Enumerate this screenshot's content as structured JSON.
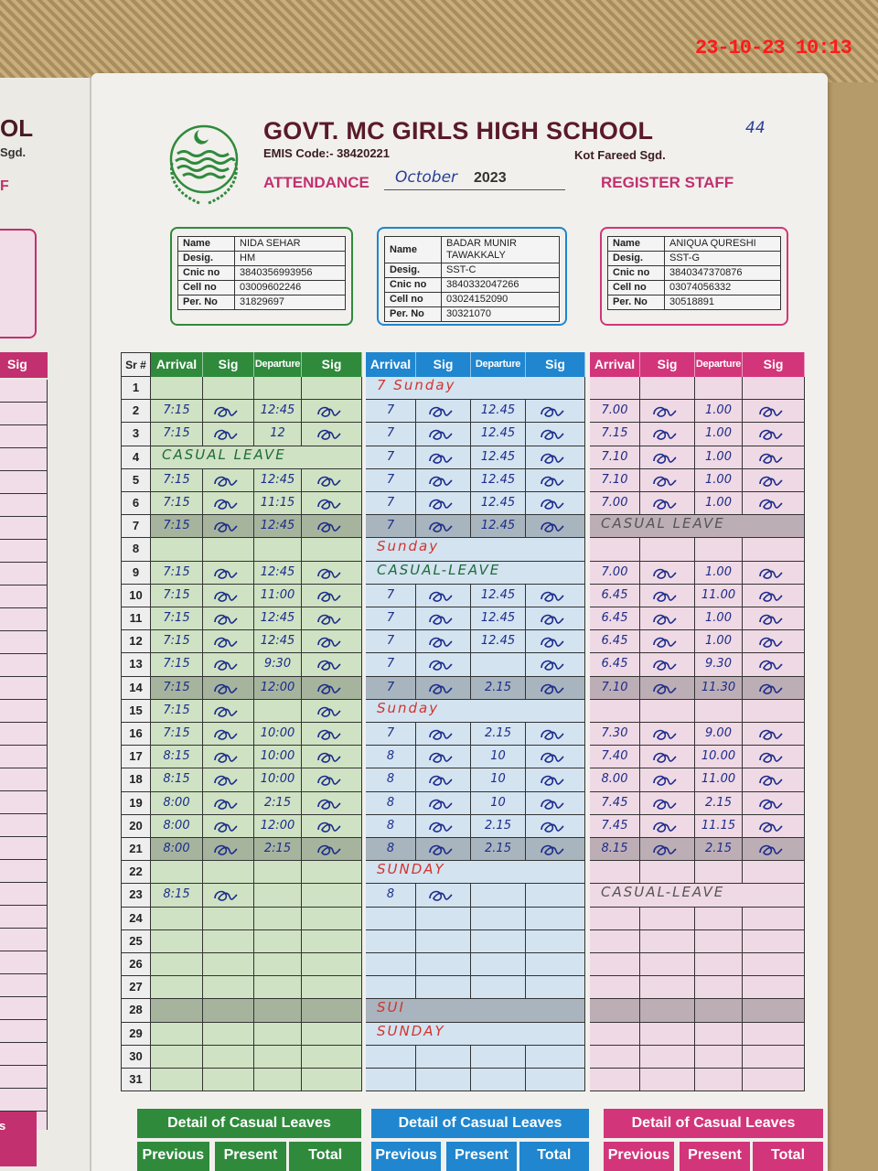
{
  "left_page": {
    "title_fragment": "OL",
    "city_fragment": "Sgd.",
    "letter_fragment": "F",
    "sig_header": "Sig",
    "footer_fragment": "s"
  },
  "header": {
    "school": "GOVT. MC GIRLS HIGH SCHOOL",
    "emis": "EMIS Code:- 38420221",
    "city": "Kot Fareed Sgd.",
    "page_number": "44",
    "attendance_label": "ATTENDANCE",
    "month": "October",
    "year": "2023",
    "register_label": "REGISTER STAFF"
  },
  "colors": {
    "green": "#2f8a3c",
    "green_bg": "#cfe2c3",
    "blue": "#1f86cf",
    "blue_bg": "#d3e3f0",
    "pink": "#d2357a",
    "pink_bg": "#efd9e4",
    "ink": "#1c2c8a",
    "title": "#5a1a28"
  },
  "field_labels": {
    "name": "Name",
    "desig": "Desig.",
    "cnic": "Cnic no",
    "cell": "Cell no",
    "per": "Per. No"
  },
  "columns": {
    "sr": "Sr #",
    "arrival": "Arrival",
    "sig": "Sig",
    "departure": "Departure"
  },
  "shaded_rows": [
    7,
    14,
    21,
    28
  ],
  "staff": [
    {
      "theme": "green",
      "name": "NIDA SEHAR",
      "desig": "HM",
      "cnic": "3840356993956",
      "cell": "03009602246",
      "per": "31829697",
      "rows": {
        "2": {
          "a": "7:15",
          "as": true,
          "d": "12:45",
          "ds": true
        },
        "3": {
          "a": "7:15",
          "as": true,
          "d": "12",
          "ds": true
        },
        "4": {
          "note": "CASUAL LEAVE"
        },
        "5": {
          "a": "7:15",
          "as": true,
          "d": "12:45",
          "ds": true
        },
        "6": {
          "a": "7:15",
          "as": true,
          "d": "11:15",
          "ds": true
        },
        "7": {
          "a": "7:15",
          "as": true,
          "d": "12:45",
          "ds": true
        },
        "9": {
          "a": "7:15",
          "as": true,
          "d": "12:45",
          "ds": true
        },
        "10": {
          "a": "7:15",
          "as": true,
          "d": "11:00",
          "ds": true
        },
        "11": {
          "a": "7:15",
          "as": true,
          "d": "12:45",
          "ds": true
        },
        "12": {
          "a": "7:15",
          "as": true,
          "d": "12:45",
          "ds": true
        },
        "13": {
          "a": "7:15",
          "as": true,
          "d": "9:30",
          "ds": true
        },
        "14": {
          "a": "7:15",
          "as": true,
          "d": "12:00",
          "ds": true
        },
        "15": {
          "a": "7:15",
          "as": true,
          "d": "",
          "ds": true
        },
        "16": {
          "a": "7:15",
          "as": true,
          "d": "10:00",
          "ds": true
        },
        "17": {
          "a": "8:15",
          "as": true,
          "d": "10:00",
          "ds": true
        },
        "18": {
          "a": "8:15",
          "as": true,
          "d": "10:00",
          "ds": true
        },
        "19": {
          "a": "8:00",
          "as": true,
          "d": "2:15",
          "ds": true
        },
        "20": {
          "a": "8:00",
          "as": true,
          "d": "12:00",
          "ds": true
        },
        "21": {
          "a": "8:00",
          "as": true,
          "d": "2:15",
          "ds": true
        },
        "23": {
          "a": "8:15",
          "as": true,
          "d": "",
          "ds": false
        }
      },
      "footer": {
        "title": "Detail of Casual Leaves",
        "previous": "Previous",
        "present": "Present",
        "total": "Total"
      }
    },
    {
      "theme": "blue",
      "name": "BADAR MUNIR TAWAKKALY",
      "desig": "SST-C",
      "cnic": "3840332047266",
      "cell": "03024152090",
      "per": "30321070",
      "rows": {
        "1": {
          "note": "7 Sunday"
        },
        "2": {
          "a": "7",
          "as": true,
          "d": "12.45",
          "ds": true
        },
        "3": {
          "a": "7",
          "as": true,
          "d": "12.45",
          "ds": true
        },
        "4": {
          "a": "7",
          "as": true,
          "d": "12.45",
          "ds": true
        },
        "5": {
          "a": "7",
          "as": true,
          "d": "12.45",
          "ds": true
        },
        "6": {
          "a": "7",
          "as": true,
          "d": "12.45",
          "ds": true
        },
        "7": {
          "a": "7",
          "as": true,
          "d": "12.45",
          "ds": true
        },
        "8": {
          "note": "Sunday"
        },
        "9": {
          "note": "CASUAL-LEAVE"
        },
        "10": {
          "a": "7",
          "as": true,
          "d": "12.45",
          "ds": true
        },
        "11": {
          "a": "7",
          "as": true,
          "d": "12.45",
          "ds": true
        },
        "12": {
          "a": "7",
          "as": true,
          "d": "12.45",
          "ds": true
        },
        "13": {
          "a": "7",
          "as": true,
          "d": "",
          "ds": true
        },
        "14": {
          "a": "7",
          "as": true,
          "d": "2.15",
          "ds": true
        },
        "15": {
          "note": "Sunday"
        },
        "16": {
          "a": "7",
          "as": true,
          "d": "2.15",
          "ds": true
        },
        "17": {
          "a": "8",
          "as": true,
          "d": "10",
          "ds": true
        },
        "18": {
          "a": "8",
          "as": true,
          "d": "10",
          "ds": true
        },
        "19": {
          "a": "8",
          "as": true,
          "d": "10",
          "ds": true
        },
        "20": {
          "a": "8",
          "as": true,
          "d": "2.15",
          "ds": true
        },
        "21": {
          "a": "8",
          "as": true,
          "d": "2.15",
          "ds": true
        },
        "22": {
          "note": "SUNDAY"
        },
        "23": {
          "a": "8",
          "as": true,
          "d": "",
          "ds": false
        },
        "28": {
          "note": "SUI"
        },
        "29": {
          "note": "SUNDAY"
        }
      },
      "footer": {
        "title": "Detail of Casual Leaves",
        "previous": "Previous",
        "present": "Present",
        "total": "Total"
      }
    },
    {
      "theme": "pink",
      "name": "ANIQUA QURESHI",
      "desig": "SST-G",
      "cnic": "3840347370876",
      "cell": "03074056332",
      "per": "30518891",
      "rows": {
        "2": {
          "a": "7.00",
          "as": true,
          "d": "1.00",
          "ds": true
        },
        "3": {
          "a": "7.15",
          "as": true,
          "d": "1.00",
          "ds": true
        },
        "4": {
          "a": "7.10",
          "as": true,
          "d": "1.00",
          "ds": true
        },
        "5": {
          "a": "7.10",
          "as": true,
          "d": "1.00",
          "ds": true
        },
        "6": {
          "a": "7.00",
          "as": true,
          "d": "1.00",
          "ds": true
        },
        "7": {
          "note": "CASUAL LEAVE"
        },
        "9": {
          "a": "7.00",
          "as": true,
          "d": "1.00",
          "ds": true
        },
        "10": {
          "a": "6.45",
          "as": true,
          "d": "11.00",
          "ds": true
        },
        "11": {
          "a": "6.45",
          "as": true,
          "d": "1.00",
          "ds": true
        },
        "12": {
          "a": "6.45",
          "as": true,
          "d": "1.00",
          "ds": true
        },
        "13": {
          "a": "6.45",
          "as": true,
          "d": "9.30",
          "ds": true
        },
        "14": {
          "a": "7.10",
          "as": true,
          "d": "11.30",
          "ds": true
        },
        "16": {
          "a": "7.30",
          "as": true,
          "d": "9.00",
          "ds": true
        },
        "17": {
          "a": "7.40",
          "as": true,
          "d": "10.00",
          "ds": true
        },
        "18": {
          "a": "8.00",
          "as": true,
          "d": "11.00",
          "ds": true
        },
        "19": {
          "a": "7.45",
          "as": true,
          "d": "2.15",
          "ds": true
        },
        "20": {
          "a": "7.45",
          "as": true,
          "d": "11.15",
          "ds": true
        },
        "21": {
          "a": "8.15",
          "as": true,
          "d": "2.15",
          "ds": true
        },
        "23": {
          "note": "CASUAL-LEAVE"
        }
      },
      "footer": {
        "title": "Detail of Casual Leaves",
        "previous": "Previous",
        "present": "Present",
        "total": "Total"
      }
    }
  ],
  "timestamp": "23-10-23 10:13"
}
